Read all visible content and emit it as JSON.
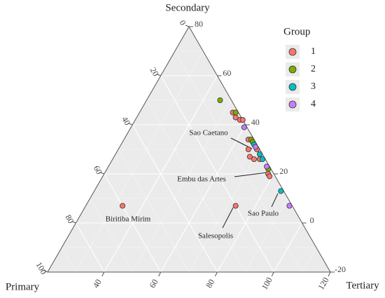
{
  "chart_data": {
    "type": "ternary",
    "axis_titles": {
      "primary": "Primary",
      "secondary": "Secondary",
      "tertiary": "Tertiary"
    },
    "primary_lim": [
      0,
      100
    ],
    "primary_ticks": [
      0,
      20,
      40,
      60,
      80,
      100
    ],
    "secondary_lim": [
      -20,
      80
    ],
    "secondary_ticks": [
      -20,
      0,
      20,
      40,
      60,
      80
    ],
    "tertiary_lim": [
      20,
      120
    ],
    "tertiary_ticks": [
      40,
      60,
      80,
      100,
      120
    ],
    "legend_title": "Group",
    "series": [
      {
        "name": "1",
        "color": "#f8766d",
        "primary": [
          60,
          20,
          2,
          2,
          1,
          0,
          2,
          1,
          4,
          5,
          4,
          2,
          2,
          2
        ],
        "secondary": [
          7,
          7,
          45,
          43,
          42,
          42,
          34,
          30,
          30,
          27,
          26,
          26,
          20,
          19
        ],
        "tertiary": [
          33,
          73,
          53,
          55,
          57,
          58,
          64,
          69,
          66,
          68,
          70,
          72,
          78,
          79
        ]
      },
      {
        "name": "2",
        "color": "#7cae00",
        "primary": [
          4,
          1,
          1,
          1,
          1
        ],
        "secondary": [
          50,
          45,
          34,
          33,
          22
        ],
        "tertiary": [
          46,
          54,
          65,
          66,
          77
        ]
      },
      {
        "name": "3",
        "color": "#00bfc4",
        "primary": [
          1,
          1,
          1,
          1
        ],
        "secondary": [
          32,
          28,
          26,
          13
        ],
        "tertiary": [
          67,
          71,
          73,
          86
        ]
      },
      {
        "name": "4",
        "color": "#c77cff",
        "primary": [
          1,
          1,
          1,
          1
        ],
        "secondary": [
          39,
          31,
          23,
          7
        ],
        "tertiary": [
          60,
          68,
          76,
          92
        ]
      }
    ],
    "annotations": [
      {
        "text": "Sao Caetano"
      },
      {
        "text": "Embu das Artes"
      },
      {
        "text": "Biritiba Mirim"
      },
      {
        "text": "Salesopolis"
      },
      {
        "text": "Sao Paulo"
      }
    ]
  }
}
